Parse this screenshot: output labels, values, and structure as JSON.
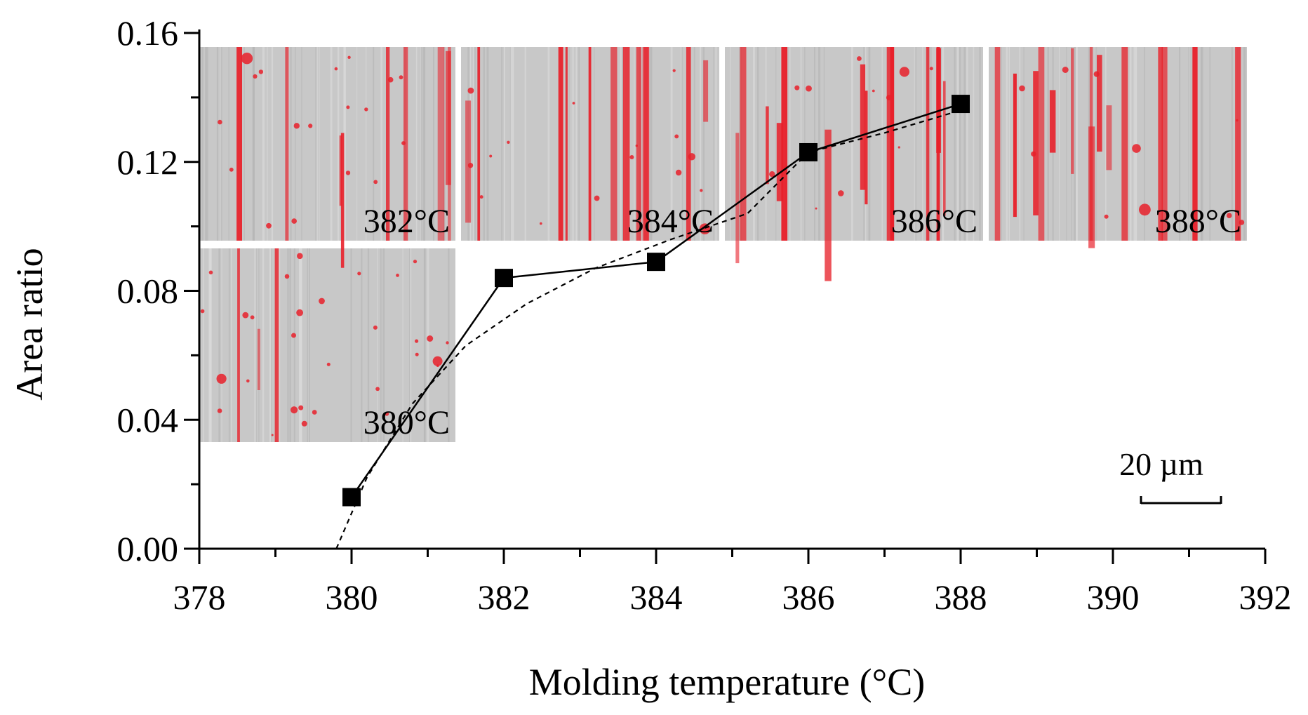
{
  "chart_data": {
    "type": "line",
    "title": "",
    "xlabel": "Molding temperature (°C)",
    "ylabel": "Area ratio",
    "xlim": [
      378,
      392
    ],
    "ylim": [
      0,
      0.16
    ],
    "xticks": [
      378,
      380,
      382,
      384,
      386,
      388,
      390,
      392
    ],
    "xtick_labels": [
      "378",
      "380",
      "382",
      "384",
      "386",
      "388",
      "390",
      "392"
    ],
    "yticks": [
      0,
      0.04,
      0.08,
      0.12,
      0.16
    ],
    "ytick_labels": [
      "0.00",
      "0.04",
      "0.08",
      "0.12",
      "0.16"
    ],
    "grid": false,
    "series": [
      {
        "style": "solid",
        "marker": "square",
        "x": [
          380,
          382,
          384,
          386,
          388
        ],
        "y": [
          0.016,
          0.084,
          0.089,
          0.123,
          0.138
        ]
      },
      {
        "style": "dashed",
        "marker": "none",
        "x": [
          379.8,
          380.2,
          380.8,
          381.5,
          382.3,
          383.2,
          384.2,
          385.2,
          386.0,
          387.0,
          388.0
        ],
        "y": [
          0.0,
          0.022,
          0.045,
          0.063,
          0.076,
          0.087,
          0.096,
          0.104,
          0.123,
          0.129,
          0.136
        ]
      }
    ],
    "insets": [
      {
        "label": "380°C"
      },
      {
        "label": "382°C"
      },
      {
        "label": "384°C"
      },
      {
        "label": "386°C"
      },
      {
        "label": "388°C"
      }
    ],
    "scale_bar": {
      "label": "20 µm"
    },
    "colors": {
      "axis": "#000000",
      "inset_background": "#c8c8c8",
      "inset_streak": "#e8202a"
    }
  }
}
